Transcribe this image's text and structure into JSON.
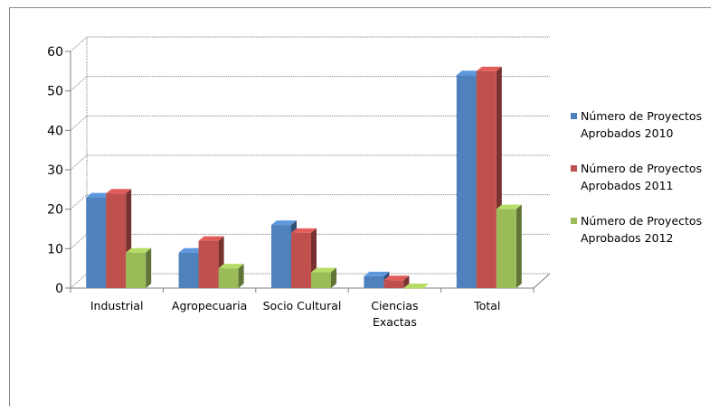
{
  "chart_data": {
    "type": "bar",
    "title": "",
    "xlabel": "",
    "ylabel": "",
    "ylim": [
      0,
      60
    ],
    "yticks": [
      "0",
      "10",
      "20",
      "30",
      "40",
      "50",
      "60"
    ],
    "categories": [
      [
        "Industrial"
      ],
      [
        "Agropecuaria"
      ],
      [
        "Socio Cultural"
      ],
      [
        "Ciencias",
        "Exactas"
      ],
      [
        "Total"
      ]
    ],
    "series": [
      {
        "name": [
          "Número de Proyectos",
          "Aprobados 2010"
        ],
        "color": "#4F81BD",
        "values": [
          23,
          9,
          16,
          3,
          54
        ]
      },
      {
        "name": [
          "Número de Proyectos",
          "Aprobados 2011"
        ],
        "color": "#C0504D",
        "values": [
          24,
          12,
          14,
          2,
          55
        ]
      },
      {
        "name": [
          "Número de Proyectos",
          "Aprobados 2012"
        ],
        "color": "#9BBB59",
        "values": [
          9,
          5,
          4,
          0,
          20
        ]
      }
    ],
    "grid": true,
    "legend": "right",
    "style": "3d-clustered-column"
  }
}
